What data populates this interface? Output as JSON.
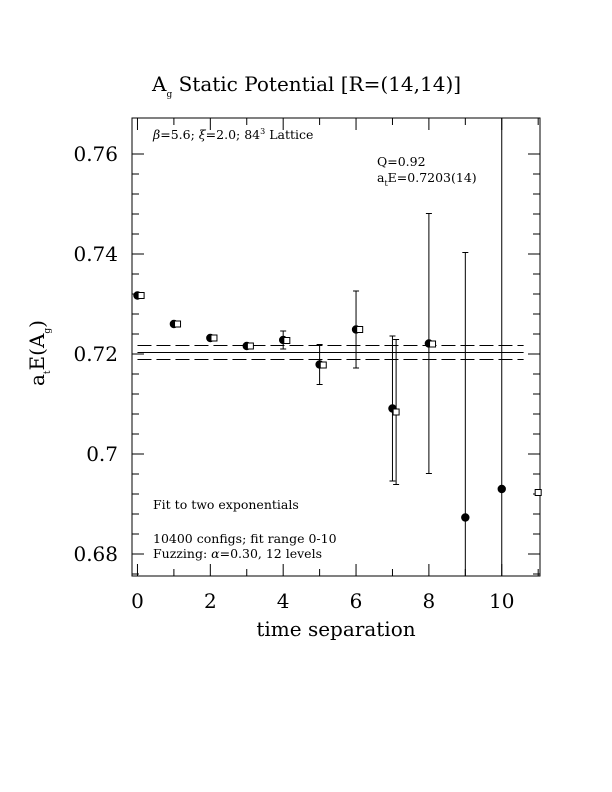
{
  "chart_data": {
    "type": "scatter",
    "title": {
      "main": "A",
      "sub": "g",
      "rest": " Static Potential [R=(14,14)]"
    },
    "xlabel": "time separation",
    "ylabel": {
      "a": "a",
      "t": "t",
      "mid": "E(A",
      "g": "g",
      "end": ")"
    },
    "xlim": [
      -0.15,
      11.05
    ],
    "ylim": [
      0.6756,
      0.7672
    ],
    "x_ticks": [
      0,
      2,
      4,
      6,
      8,
      10
    ],
    "y_ticks": [
      0.68,
      0.7,
      0.72,
      0.74,
      0.76
    ],
    "x_tick_labels": [
      "0",
      "2",
      "4",
      "6",
      "8",
      "10"
    ],
    "y_tick_labels": [
      "0.68",
      "0.7",
      "0.72",
      "0.74",
      "0.76"
    ],
    "series": [
      {
        "marker": "filled-circle",
        "points": [
          {
            "x": 0,
            "y": 0.7317,
            "err": 0.0
          },
          {
            "x": 1,
            "y": 0.726,
            "err": 0.0
          },
          {
            "x": 2,
            "y": 0.7232,
            "err": 0.0
          },
          {
            "x": 3,
            "y": 0.7216,
            "err": 0.0005
          },
          {
            "x": 4,
            "y": 0.7228,
            "err": 0.0018
          },
          {
            "x": 5,
            "y": 0.7179,
            "err": 0.004
          },
          {
            "x": 6,
            "y": 0.7249,
            "err": 0.0077
          },
          {
            "x": 7,
            "y": 0.7091,
            "err": 0.0145
          },
          {
            "x": 8,
            "y": 0.7221,
            "err": 0.026
          },
          {
            "x": 9,
            "y": 0.6873,
            "err": 0.053
          },
          {
            "x": 10,
            "y": 0.693,
            "err": 0.1
          }
        ]
      },
      {
        "marker": "open-square",
        "points": [
          {
            "x": 0.1,
            "y": 0.7317
          },
          {
            "x": 1.1,
            "y": 0.726
          },
          {
            "x": 2.1,
            "y": 0.7232
          },
          {
            "x": 3.1,
            "y": 0.7216
          },
          {
            "x": 4.1,
            "y": 0.7227
          },
          {
            "x": 5.1,
            "y": 0.7178
          },
          {
            "x": 6.1,
            "y": 0.7249
          },
          {
            "x": 7.1,
            "y": 0.7084,
            "err": 0.0145
          },
          {
            "x": 8.1,
            "y": 0.722
          },
          {
            "x": 11.0,
            "y": 0.6923
          }
        ]
      }
    ],
    "fit": {
      "center": 0.7203,
      "err": 0.0014,
      "x_start": 0,
      "x_end": 10.6
    },
    "annotations": {
      "lattice": {
        "beta": "β",
        "beta_val": "=5.6; ",
        "xi": "ξ",
        "xi_val": "=2.0; 84",
        "sup": "3",
        "end": " Lattice"
      },
      "q": "Q=0.92",
      "fit_result": {
        "a": "a",
        "t": "t",
        "rest": "E=0.7203(14)"
      },
      "fit_type": "Fit to two exponentials",
      "configs": "10400 configs; fit range 0-10",
      "fuzzing": {
        "pre": "Fuzzing: ",
        "alpha": "α",
        "post": "=0.30, 12 levels"
      }
    }
  }
}
